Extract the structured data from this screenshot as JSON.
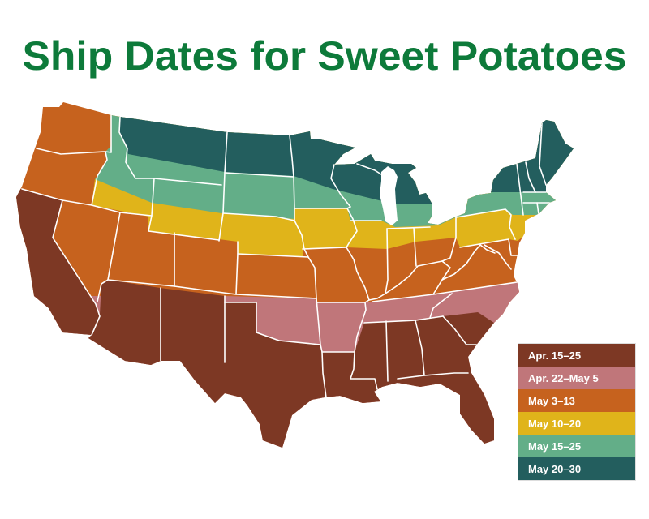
{
  "title": "Ship Dates for Sweet Potatoes",
  "title_color": "#0d7a3a",
  "legend": [
    {
      "label": "Apr. 15–25",
      "color": "#7d3824"
    },
    {
      "label": "Apr. 22–May 5",
      "color": "#c0767a"
    },
    {
      "label": "May 3–13",
      "color": "#c6621e"
    },
    {
      "label": "May 10–20",
      "color": "#e0b41a"
    },
    {
      "label": "May 15–25",
      "color": "#63ae88"
    },
    {
      "label": "May 20–30",
      "color": "#235e5e"
    }
  ]
}
